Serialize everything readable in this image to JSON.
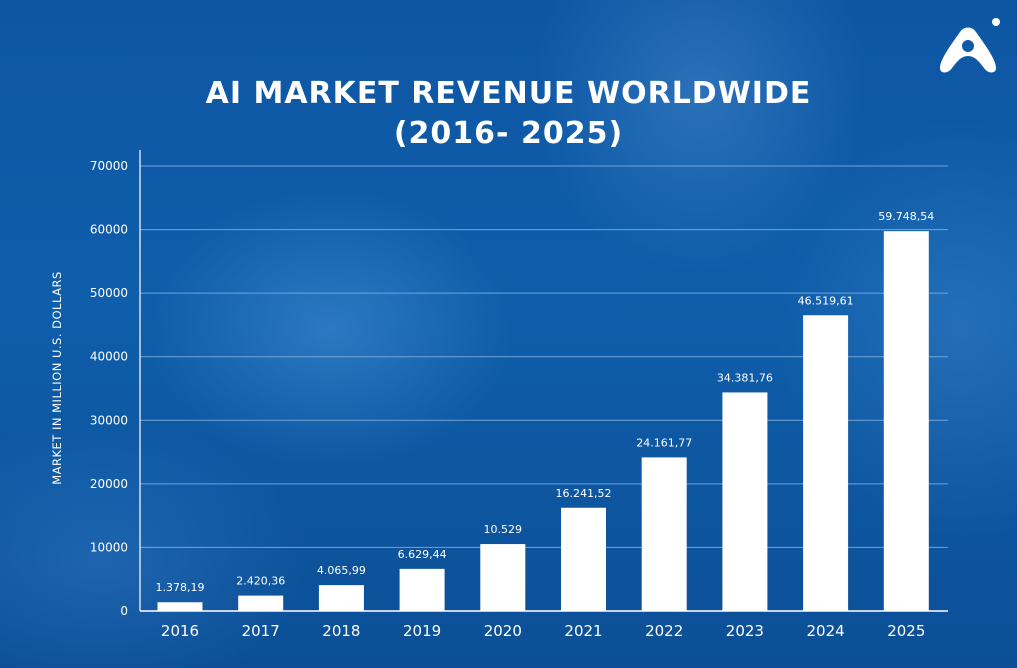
{
  "title_line1": "AI MARKET REVENUE WORLDWIDE",
  "title_line2": "(2016- 2025)",
  "colors": {
    "background": "#0f5aa6",
    "bar": "#ffffff",
    "text": "#ffffff",
    "grid": "#7fb0e0"
  },
  "logo_icon": "arch-logo-icon",
  "chart_data": {
    "type": "bar",
    "title": "AI MARKET REVENUE WORLDWIDE (2016- 2025)",
    "xlabel": "",
    "ylabel": "MARKET IN MILLION U.S. DOLLARS",
    "categories": [
      "2016",
      "2017",
      "2018",
      "2019",
      "2020",
      "2021",
      "2022",
      "2023",
      "2024",
      "2025"
    ],
    "values": [
      1378.19,
      2420.36,
      4065.99,
      6629.44,
      10529,
      16241.52,
      24161.77,
      34381.76,
      46519.61,
      59748.54
    ],
    "value_labels": [
      "1.378,19",
      "2.420,36",
      "4.065,99",
      "6.629,44",
      "10.529",
      "16.241,52",
      "24.161,77",
      "34.381,76",
      "46.519,61",
      "59.748,54"
    ],
    "yticks": [
      "0",
      "10000",
      "20000",
      "30000",
      "40000",
      "50000",
      "60000",
      "70000"
    ],
    "ylim": [
      0,
      70000
    ],
    "grid": true,
    "legend": "none"
  }
}
